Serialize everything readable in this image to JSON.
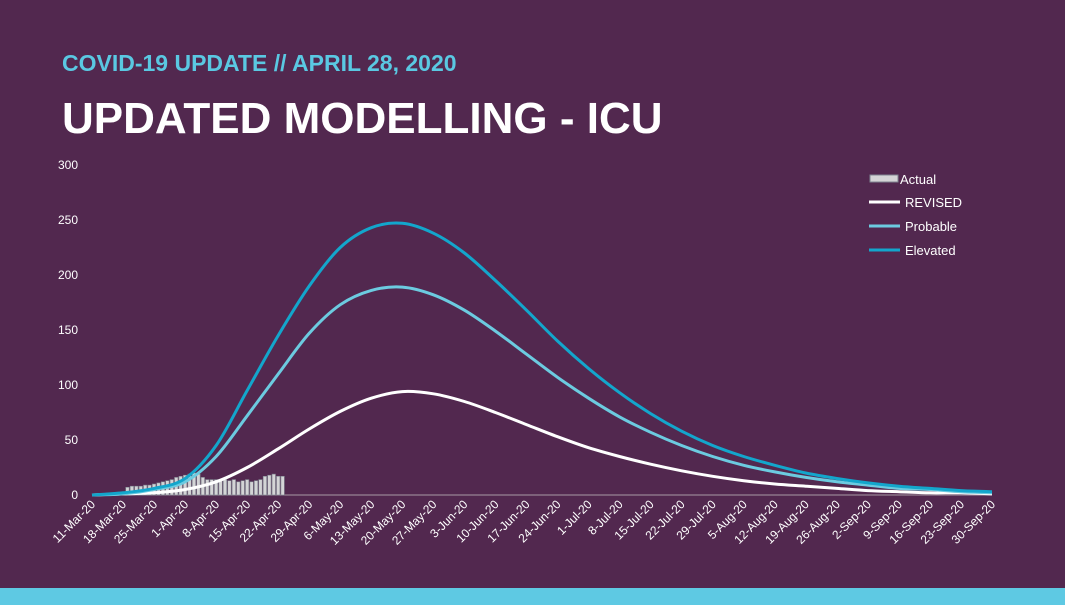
{
  "header": {
    "subtitle": "COVID-19 UPDATE // APRIL 28, 2020",
    "title": "UPDATED MODELLING - ICU"
  },
  "chart_data": {
    "type": "line",
    "title": "",
    "xlabel": "",
    "ylabel": "",
    "ylim": [
      0,
      300
    ],
    "yticks": [
      0,
      50,
      100,
      150,
      200,
      250,
      300
    ],
    "grid": false,
    "legend_position": "top-right",
    "x": [
      "11-Mar-20",
      "18-Mar-20",
      "25-Mar-20",
      "1-Apr-20",
      "8-Apr-20",
      "15-Apr-20",
      "22-Apr-20",
      "29-Apr-20",
      "6-May-20",
      "13-May-20",
      "20-May-20",
      "27-May-20",
      "3-Jun-20",
      "10-Jun-20",
      "17-Jun-20",
      "24-Jun-20",
      "1-Jul-20",
      "8-Jul-20",
      "15-Jul-20",
      "22-Jul-20",
      "29-Jul-20",
      "5-Aug-20",
      "12-Aug-20",
      "19-Aug-20",
      "26-Aug-20",
      "2-Sep-20",
      "9-Sep-20",
      "16-Sep-20",
      "23-Sep-20",
      "30-Sep-20"
    ],
    "series": [
      {
        "name": "REVISED",
        "color": "#ffffff",
        "values": [
          0,
          1,
          2,
          5,
          12,
          25,
          42,
          60,
          76,
          88,
          94,
          92,
          85,
          75,
          64,
          53,
          43,
          35,
          28,
          22,
          17,
          13,
          10,
          8,
          6,
          4,
          3,
          2,
          2,
          1
        ]
      },
      {
        "name": "Probable",
        "color": "#6ccbe0",
        "values": [
          0,
          1,
          5,
          12,
          35,
          72,
          110,
          147,
          173,
          186,
          189,
          182,
          168,
          149,
          128,
          107,
          88,
          71,
          57,
          45,
          35,
          27,
          21,
          16,
          12,
          9,
          6,
          5,
          3,
          2
        ]
      },
      {
        "name": "Elevated",
        "color": "#13a6cc",
        "values": [
          0,
          2,
          6,
          15,
          45,
          95,
          145,
          190,
          225,
          243,
          247,
          238,
          220,
          195,
          168,
          140,
          115,
          93,
          74,
          58,
          45,
          35,
          27,
          20,
          15,
          11,
          8,
          6,
          4,
          3
        ]
      }
    ],
    "bars": {
      "name": "Actual",
      "color": "#d4d4d6",
      "start_date": "19-Mar-20",
      "end_date": "23-Apr-20",
      "values": [
        7,
        8,
        8,
        8,
        9,
        9,
        10,
        11,
        12,
        13,
        14,
        16,
        17,
        18,
        19,
        20,
        19,
        16,
        14,
        14,
        14,
        14,
        14,
        13,
        14,
        12,
        13,
        14,
        12,
        13,
        14,
        17,
        18,
        19,
        17,
        17
      ]
    }
  }
}
